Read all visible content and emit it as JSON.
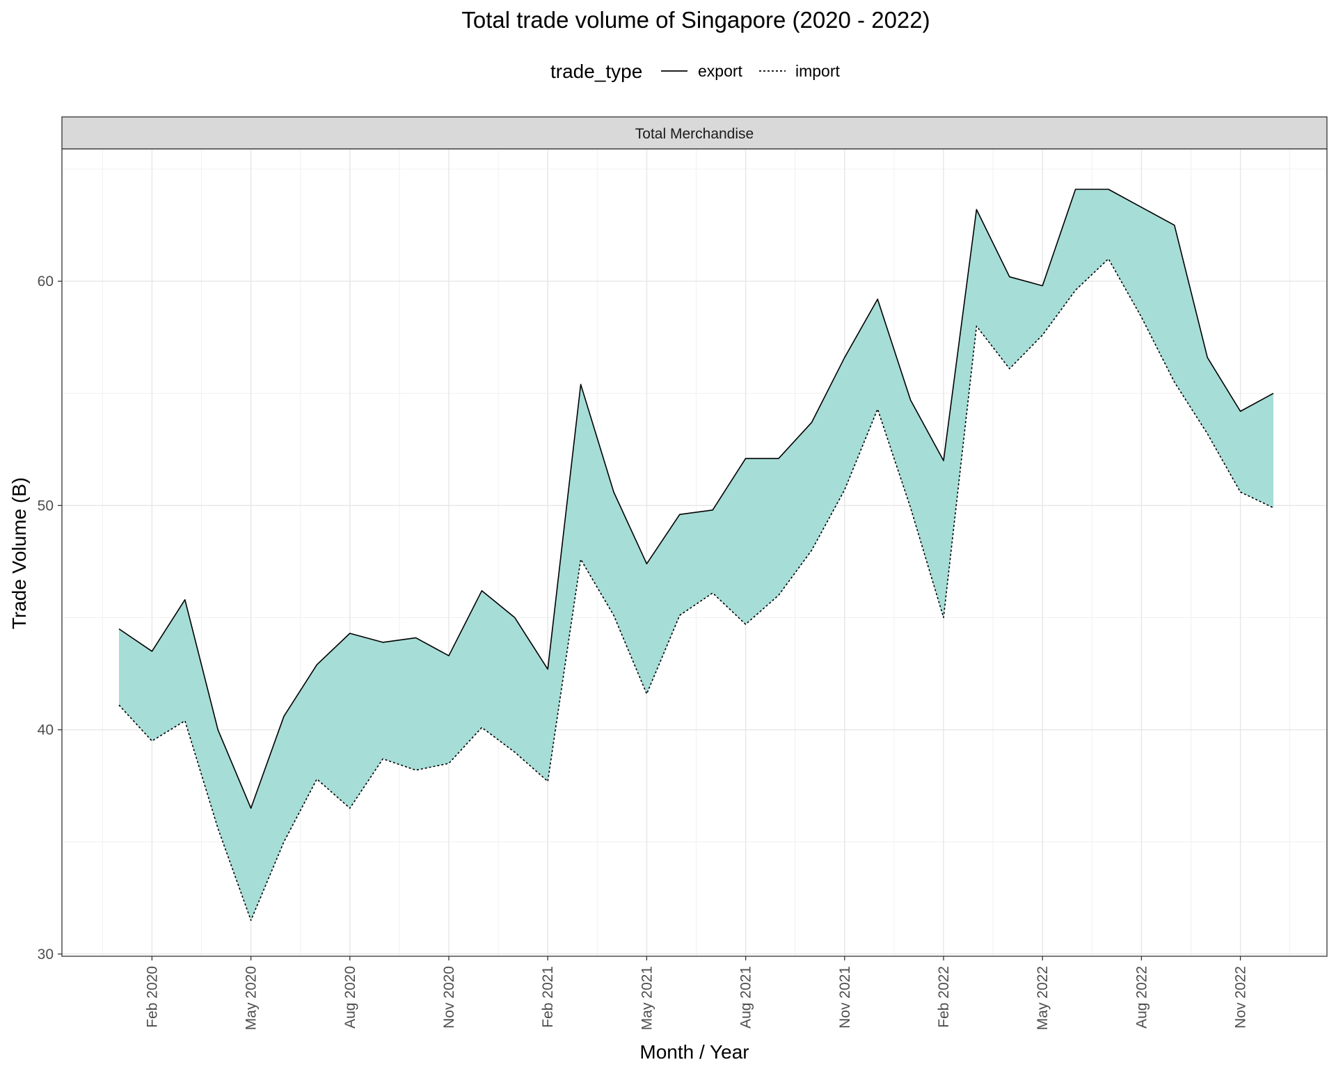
{
  "chart_data": {
    "type": "area",
    "title": "Total trade volume of Singapore (2020 - 2022)",
    "xlabel": "Month / Year",
    "ylabel": "Trade Volume (B)",
    "facet_label": "Total Merchandise",
    "legend": {
      "title": "trade_type",
      "position": "top",
      "entries": [
        {
          "name": "export",
          "linetype": "solid"
        },
        {
          "name": "import",
          "linetype": "dotted"
        }
      ]
    },
    "x": [
      "2020-01",
      "2020-02",
      "2020-03",
      "2020-04",
      "2020-05",
      "2020-06",
      "2020-07",
      "2020-08",
      "2020-09",
      "2020-10",
      "2020-11",
      "2020-12",
      "2021-01",
      "2021-02",
      "2021-03",
      "2021-04",
      "2021-05",
      "2021-06",
      "2021-07",
      "2021-08",
      "2021-09",
      "2021-10",
      "2021-11",
      "2021-12",
      "2022-01",
      "2022-02",
      "2022-03",
      "2022-04",
      "2022-05",
      "2022-06",
      "2022-07",
      "2022-08",
      "2022-09",
      "2022-10",
      "2022-11",
      "2022-12"
    ],
    "series": [
      {
        "name": "export",
        "values": [
          44.5,
          43.5,
          45.8,
          40.0,
          36.5,
          40.6,
          42.9,
          44.3,
          43.9,
          44.1,
          43.3,
          46.2,
          45.0,
          42.7,
          55.4,
          50.6,
          47.4,
          49.6,
          49.8,
          52.1,
          52.1,
          53.7,
          56.6,
          59.2,
          54.7,
          52.0,
          63.2,
          60.2,
          59.8,
          64.1,
          64.1,
          63.3,
          62.5,
          56.6,
          54.2,
          55.0
        ]
      },
      {
        "name": "import",
        "values": [
          41.1,
          39.5,
          40.4,
          35.6,
          31.5,
          35.0,
          37.8,
          36.5,
          38.7,
          38.2,
          38.5,
          40.1,
          39.0,
          37.7,
          47.6,
          45.1,
          41.6,
          45.1,
          46.1,
          44.7,
          46.0,
          48.0,
          50.7,
          54.3,
          49.9,
          45.0,
          58.0,
          56.1,
          57.6,
          59.6,
          61.0,
          58.4,
          55.5,
          53.2,
          50.6,
          49.9
        ]
      }
    ],
    "fill_color": "#a6ddd7",
    "line_color": "#000000",
    "ylim": [
      29.9,
      65.9
    ],
    "yticks": [
      30,
      40,
      50,
      60
    ],
    "x_tick_labels": [
      "Feb 2020",
      "May 2020",
      "Aug 2020",
      "Nov 2020",
      "Feb 2021",
      "May 2021",
      "Aug 2021",
      "Nov 2021",
      "Feb 2022",
      "May 2022",
      "Aug 2022",
      "Nov 2022"
    ],
    "x_tick_index": [
      1,
      4,
      7,
      10,
      13,
      16,
      19,
      22,
      25,
      28,
      31,
      34
    ],
    "grid": true
  }
}
